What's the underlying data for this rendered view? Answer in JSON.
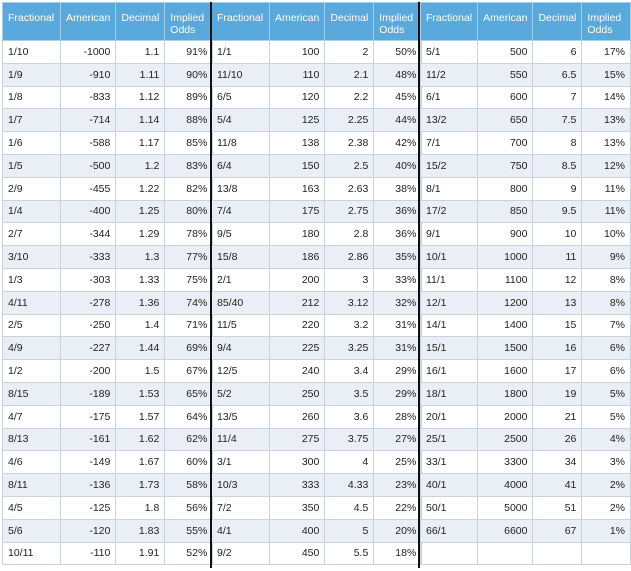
{
  "panels": [
    {
      "headers": [
        "Fractional",
        "American",
        "Decimal",
        "Implied Odds"
      ],
      "rows": [
        [
          "1/10",
          "-1000",
          "1.1",
          "91%"
        ],
        [
          "1/9",
          "-910",
          "1.11",
          "90%"
        ],
        [
          "1/8",
          "-833",
          "1.12",
          "89%"
        ],
        [
          "1/7",
          "-714",
          "1.14",
          "88%"
        ],
        [
          "1/6",
          "-588",
          "1.17",
          "85%"
        ],
        [
          "1/5",
          "-500",
          "1.2",
          "83%"
        ],
        [
          "2/9",
          "-455",
          "1.22",
          "82%"
        ],
        [
          "1/4",
          "-400",
          "1.25",
          "80%"
        ],
        [
          "2/7",
          "-344",
          "1.29",
          "78%"
        ],
        [
          "3/10",
          "-333",
          "1.3",
          "77%"
        ],
        [
          "1/3",
          "-303",
          "1.33",
          "75%"
        ],
        [
          "4/11",
          "-278",
          "1.36",
          "74%"
        ],
        [
          "2/5",
          "-250",
          "1.4",
          "71%"
        ],
        [
          "4/9",
          "-227",
          "1.44",
          "69%"
        ],
        [
          "1/2",
          "-200",
          "1.5",
          "67%"
        ],
        [
          "8/15",
          "-189",
          "1.53",
          "65%"
        ],
        [
          "4/7",
          "-175",
          "1.57",
          "64%"
        ],
        [
          "8/13",
          "-161",
          "1.62",
          "62%"
        ],
        [
          "4/6",
          "-149",
          "1.67",
          "60%"
        ],
        [
          "8/11",
          "-136",
          "1.73",
          "58%"
        ],
        [
          "4/5",
          "-125",
          "1.8",
          "56%"
        ],
        [
          "5/6",
          "-120",
          "1.83",
          "55%"
        ],
        [
          "10/11",
          "-110",
          "1.91",
          "52%"
        ]
      ]
    },
    {
      "headers": [
        "Fractional",
        "American",
        "Decimal",
        "Implied Odds"
      ],
      "rows": [
        [
          "1/1",
          "100",
          "2",
          "50%"
        ],
        [
          "11/10",
          "110",
          "2.1",
          "48%"
        ],
        [
          "6/5",
          "120",
          "2.2",
          "45%"
        ],
        [
          "5/4",
          "125",
          "2.25",
          "44%"
        ],
        [
          "11/8",
          "138",
          "2.38",
          "42%"
        ],
        [
          "6/4",
          "150",
          "2.5",
          "40%"
        ],
        [
          "13/8",
          "163",
          "2.63",
          "38%"
        ],
        [
          "7/4",
          "175",
          "2.75",
          "36%"
        ],
        [
          "9/5",
          "180",
          "2.8",
          "36%"
        ],
        [
          "15/8",
          "186",
          "2.86",
          "35%"
        ],
        [
          "2/1",
          "200",
          "3",
          "33%"
        ],
        [
          "85/40",
          "212",
          "3.12",
          "32%"
        ],
        [
          "11/5",
          "220",
          "3.2",
          "31%"
        ],
        [
          "9/4",
          "225",
          "3.25",
          "31%"
        ],
        [
          "12/5",
          "240",
          "3.4",
          "29%"
        ],
        [
          "5/2",
          "250",
          "3.5",
          "29%"
        ],
        [
          "13/5",
          "260",
          "3.6",
          "28%"
        ],
        [
          "11/4",
          "275",
          "3.75",
          "27%"
        ],
        [
          "3/1",
          "300",
          "4",
          "25%"
        ],
        [
          "10/3",
          "333",
          "4.33",
          "23%"
        ],
        [
          "7/2",
          "350",
          "4.5",
          "22%"
        ],
        [
          "4/1",
          "400",
          "5",
          "20%"
        ],
        [
          "9/2",
          "450",
          "5.5",
          "18%"
        ]
      ]
    },
    {
      "headers": [
        "Fractional",
        "American",
        "Decimal",
        "Implied Odds"
      ],
      "rows": [
        [
          "5/1",
          "500",
          "6",
          "17%"
        ],
        [
          "11/2",
          "550",
          "6.5",
          "15%"
        ],
        [
          "6/1",
          "600",
          "7",
          "14%"
        ],
        [
          "13/2",
          "650",
          "7.5",
          "13%"
        ],
        [
          "7/1",
          "700",
          "8",
          "13%"
        ],
        [
          "15/2",
          "750",
          "8.5",
          "12%"
        ],
        [
          "8/1",
          "800",
          "9",
          "11%"
        ],
        [
          "17/2",
          "850",
          "9.5",
          "11%"
        ],
        [
          "9/1",
          "900",
          "10",
          "10%"
        ],
        [
          "10/1",
          "1000",
          "11",
          "9%"
        ],
        [
          "11/1",
          "1100",
          "12",
          "8%"
        ],
        [
          "12/1",
          "1200",
          "13",
          "8%"
        ],
        [
          "14/1",
          "1400",
          "15",
          "7%"
        ],
        [
          "15/1",
          "1500",
          "16",
          "6%"
        ],
        [
          "16/1",
          "1600",
          "17",
          "6%"
        ],
        [
          "18/1",
          "1800",
          "19",
          "5%"
        ],
        [
          "20/1",
          "2000",
          "21",
          "5%"
        ],
        [
          "25/1",
          "2500",
          "26",
          "4%"
        ],
        [
          "33/1",
          "3300",
          "34",
          "3%"
        ],
        [
          "40/1",
          "4000",
          "41",
          "2%"
        ],
        [
          "50/1",
          "5000",
          "51",
          "2%"
        ],
        [
          "66/1",
          "6600",
          "67",
          "1%"
        ]
      ]
    }
  ]
}
